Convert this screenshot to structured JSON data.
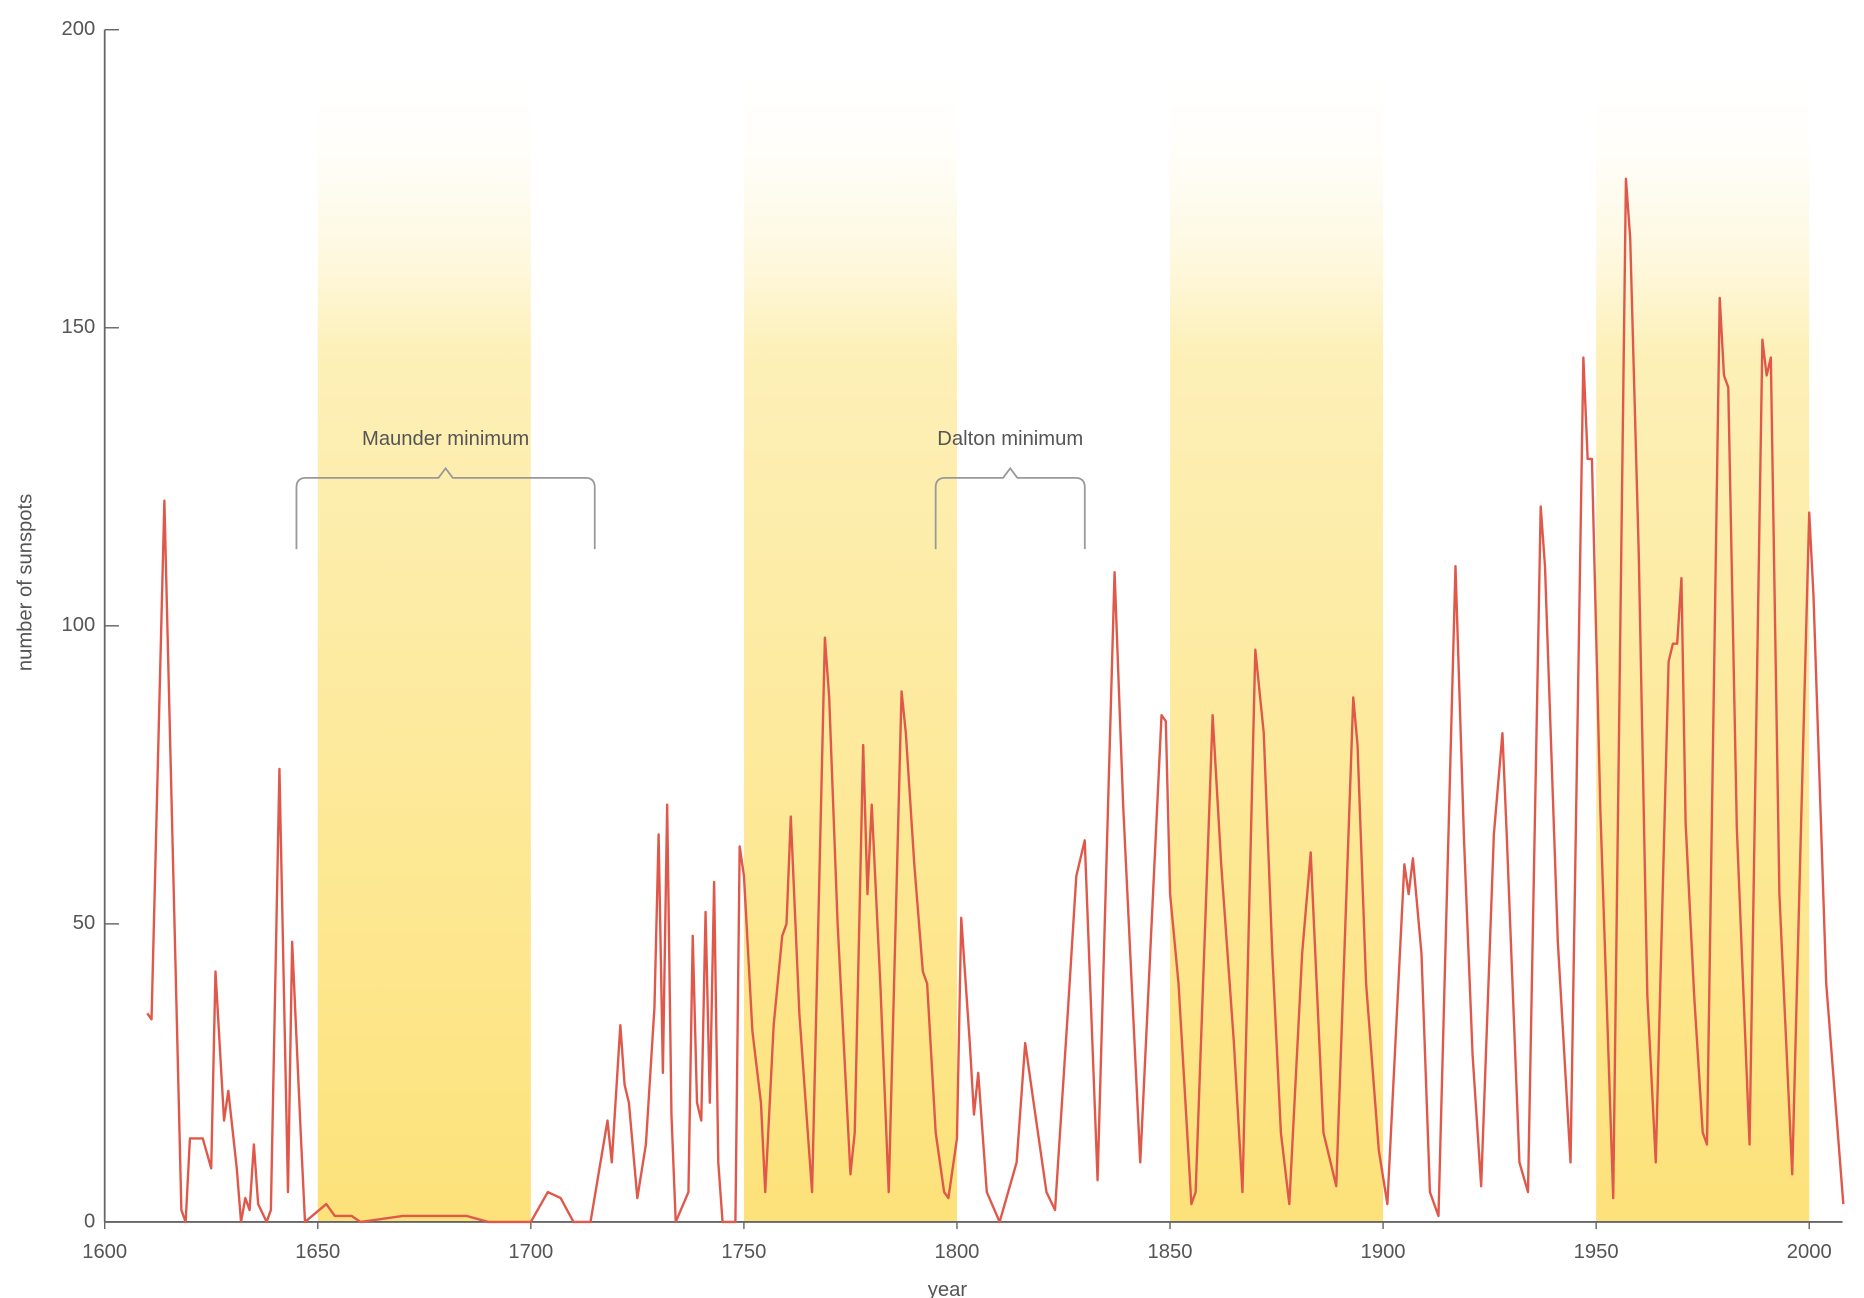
{
  "chart_data": {
    "type": "line",
    "x_label": "year",
    "y_label": "number of sunspots",
    "xlim": [
      1600,
      2010
    ],
    "ylim": [
      0,
      200
    ],
    "xticks": [
      1600,
      1650,
      1700,
      1750,
      1800,
      1850,
      1900,
      1950,
      2000
    ],
    "yticks": [
      0,
      50,
      100,
      150,
      200
    ],
    "shaded_bands": [
      [
        1650,
        1700
      ],
      [
        1750,
        1800
      ],
      [
        1850,
        1900
      ],
      [
        1950,
        2000
      ]
    ],
    "annotations": [
      {
        "text": "Maunder minimum",
        "span": [
          1645,
          1715
        ]
      },
      {
        "text": "Dalton minimum",
        "span": [
          1795,
          1830
        ]
      }
    ],
    "series": [
      {
        "color": "#e0584a",
        "x": [
          1610,
          1611,
          1614,
          1618,
          1619,
          1620,
          1623,
          1625,
          1626,
          1628,
          1629,
          1631,
          1632,
          1633,
          1634,
          1635,
          1636,
          1638,
          1639,
          1641,
          1643,
          1644,
          1646,
          1647,
          1652,
          1654,
          1658,
          1660,
          1670,
          1675,
          1680,
          1685,
          1690,
          1695,
          1700,
          1704,
          1707,
          1710,
          1714,
          1718,
          1719,
          1721,
          1722,
          1723,
          1725,
          1727,
          1729,
          1730,
          1731,
          1732,
          1733,
          1734,
          1737,
          1738,
          1739,
          1740,
          1741,
          1742,
          1743,
          1744,
          1745,
          1748,
          1749,
          1750,
          1752,
          1754,
          1755,
          1757,
          1759,
          1760,
          1761,
          1763,
          1765,
          1766,
          1769,
          1770,
          1772,
          1775,
          1776,
          1778,
          1779,
          1780,
          1782,
          1784,
          1787,
          1788,
          1790,
          1792,
          1793,
          1795,
          1797,
          1798,
          1800,
          1801,
          1803,
          1804,
          1805,
          1807,
          1810,
          1814,
          1816,
          1818,
          1821,
          1823,
          1826,
          1828,
          1830,
          1833,
          1837,
          1839,
          1843,
          1848,
          1849,
          1850,
          1852,
          1855,
          1856,
          1860,
          1862,
          1865,
          1867,
          1870,
          1872,
          1874,
          1876,
          1878,
          1881,
          1883,
          1886,
          1889,
          1893,
          1894,
          1896,
          1899,
          1901,
          1905,
          1906,
          1907,
          1909,
          1911,
          1913,
          1917,
          1919,
          1921,
          1923,
          1926,
          1928,
          1929,
          1932,
          1934,
          1937,
          1938,
          1941,
          1944,
          1947,
          1948,
          1949,
          1951,
          1954,
          1957,
          1958,
          1960,
          1962,
          1964,
          1967,
          1968,
          1969,
          1970,
          1971,
          1973,
          1975,
          1976,
          1979,
          1980,
          1981,
          1983,
          1986,
          1989,
          1990,
          1991,
          1993,
          1996,
          1998,
          2000,
          2001,
          2004,
          2008
        ],
        "values": [
          35,
          34,
          121,
          2,
          0,
          14,
          14,
          9,
          42,
          17,
          22,
          9,
          0,
          4,
          2,
          13,
          3,
          0,
          2,
          76,
          5,
          47,
          15,
          0,
          3,
          1,
          1,
          0,
          1,
          1,
          1,
          1,
          0,
          0,
          0,
          5,
          4,
          0,
          0,
          17,
          10,
          33,
          23,
          20,
          4,
          13,
          36,
          65,
          25,
          70,
          18,
          0,
          5,
          48,
          20,
          17,
          52,
          20,
          57,
          10,
          0,
          0,
          63,
          58,
          32,
          20,
          5,
          33,
          48,
          50,
          68,
          35,
          15,
          5,
          98,
          88,
          50,
          8,
          15,
          80,
          55,
          70,
          40,
          5,
          89,
          82,
          60,
          42,
          40,
          15,
          5,
          4,
          14,
          51,
          30,
          18,
          25,
          5,
          0,
          10,
          30,
          20,
          5,
          2,
          35,
          58,
          64,
          7,
          109,
          70,
          10,
          85,
          84,
          55,
          40,
          3,
          5,
          85,
          60,
          30,
          5,
          96,
          82,
          45,
          15,
          3,
          45,
          62,
          15,
          6,
          88,
          80,
          40,
          12,
          3,
          60,
          55,
          61,
          45,
          5,
          1,
          110,
          64,
          28,
          6,
          65,
          82,
          65,
          10,
          5,
          120,
          110,
          47,
          10,
          145,
          128,
          128,
          69,
          4,
          175,
          165,
          112,
          38,
          10,
          94,
          97,
          97,
          108,
          67,
          38,
          15,
          13,
          155,
          142,
          140,
          66,
          13,
          148,
          142,
          145,
          55,
          8,
          64,
          119,
          105,
          40,
          3
        ]
      }
    ]
  }
}
